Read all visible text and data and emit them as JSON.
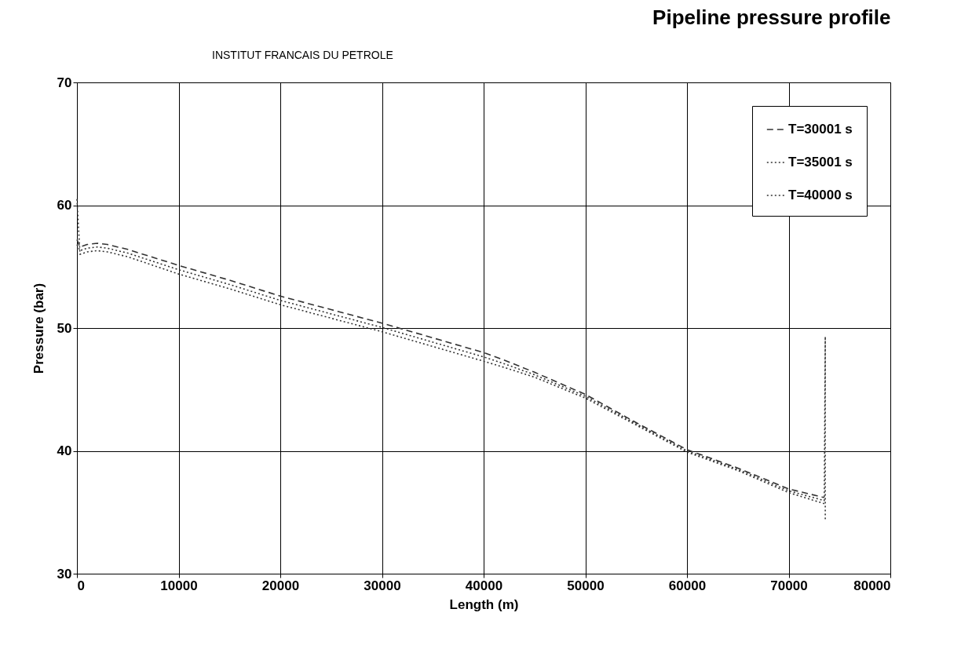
{
  "chart_data": {
    "type": "line",
    "title": "Pipeline pressure profile",
    "xlabel": "Length (m)",
    "ylabel": "Pressure (bar)",
    "annotations": [
      "INSTITUT FRANCAIS DU PETROLE"
    ],
    "xlim": [
      0,
      80000
    ],
    "xticks": [
      0,
      10000,
      20000,
      30000,
      40000,
      50000,
      60000,
      70000,
      80000
    ],
    "ylim": [
      30,
      70
    ],
    "yticks": [
      30,
      40,
      50,
      60,
      70
    ],
    "grid": true,
    "legend": "top right",
    "series": [
      {
        "name": "T=30001 s",
        "color": "#333333",
        "line_style": "dashed",
        "x": [
          0,
          300,
          1000,
          2000,
          3000,
          5000,
          10000,
          15000,
          20000,
          25000,
          30000,
          35000,
          40000,
          42000,
          45000,
          50000,
          55000,
          60000,
          65000,
          70000,
          73500
        ],
        "values": [
          57.2,
          56.6,
          56.8,
          56.9,
          56.8,
          56.4,
          55.1,
          53.9,
          52.6,
          51.5,
          50.4,
          49.2,
          48.0,
          47.4,
          46.4,
          44.6,
          42.3,
          40.1,
          38.6,
          36.9,
          36.2
        ]
      },
      {
        "name": "T=35001 s",
        "color": "#333333",
        "line_style": "dotted",
        "x": [
          0,
          300,
          1000,
          2000,
          3000,
          5000,
          10000,
          15000,
          20000,
          25000,
          30000,
          35000,
          40000,
          42000,
          45000,
          50000,
          55000,
          60000,
          65000,
          70000,
          73500,
          73600,
          73600
        ],
        "values": [
          56.8,
          56.3,
          56.5,
          56.6,
          56.5,
          56.1,
          54.75,
          53.55,
          52.25,
          51.15,
          50.05,
          48.85,
          47.65,
          47.1,
          46.2,
          44.45,
          42.2,
          40.0,
          38.5,
          36.75,
          35.95,
          49.3,
          34.4
        ]
      },
      {
        "name": "T=40000 s",
        "color": "#333333",
        "line_style": "dotted",
        "x": [
          0,
          300,
          1000,
          2000,
          3000,
          5000,
          10000,
          15000,
          20000,
          25000,
          30000,
          35000,
          40000,
          42000,
          45000,
          50000,
          55000,
          60000,
          65000,
          70000,
          73500
        ],
        "values": [
          60.5,
          56.0,
          56.2,
          56.3,
          56.2,
          55.8,
          54.4,
          53.2,
          51.9,
          50.8,
          49.7,
          48.5,
          47.3,
          46.8,
          46.0,
          44.3,
          42.1,
          39.9,
          38.4,
          36.6,
          35.7
        ]
      }
    ]
  }
}
